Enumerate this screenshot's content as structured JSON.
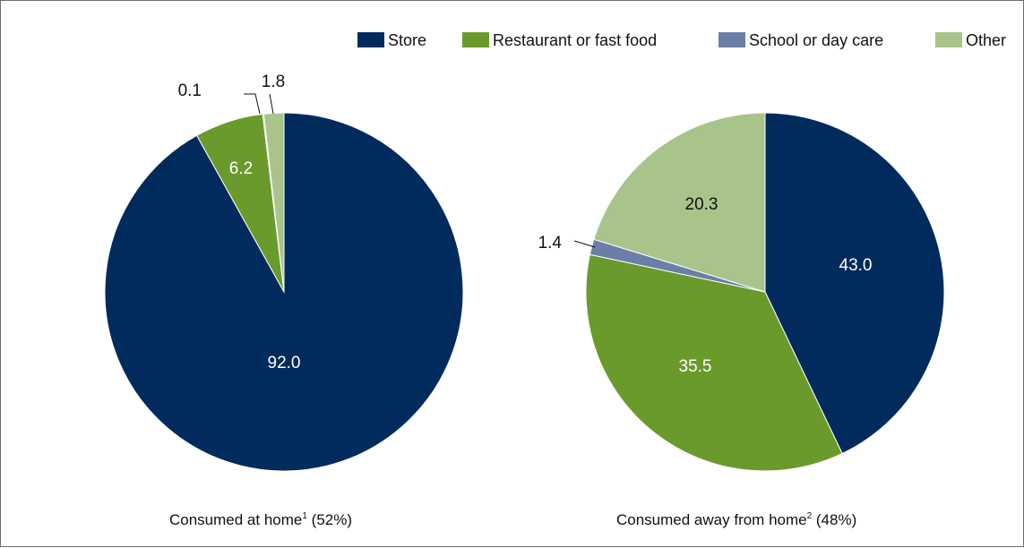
{
  "colors": {
    "store": "#002b5c",
    "restaurant": "#6a9a2c",
    "school": "#6b7fa6",
    "other": "#a9c48a"
  },
  "legend": [
    {
      "key": "store",
      "label": "Store"
    },
    {
      "key": "restaurant",
      "label": "Restaurant or fast food"
    },
    {
      "key": "school",
      "label": "School or day care"
    },
    {
      "key": "other",
      "label": "Other"
    }
  ],
  "chart_data": [
    {
      "type": "pie",
      "caption_main": "Consumed at home",
      "caption_sup": "1",
      "caption_tail": " (52%)",
      "slices": [
        {
          "key": "store",
          "label": "Store",
          "value": 92.0,
          "text": "92.0"
        },
        {
          "key": "restaurant",
          "label": "Restaurant or fast food",
          "value": 6.2,
          "text": "6.2"
        },
        {
          "key": "school",
          "label": "School or day care",
          "value": 0.1,
          "text": "0.1"
        },
        {
          "key": "other",
          "label": "Other",
          "value": 1.8,
          "text": "1.8"
        }
      ]
    },
    {
      "type": "pie",
      "caption_main": "Consumed away from home",
      "caption_sup": "2",
      "caption_tail": " (48%)",
      "slices": [
        {
          "key": "store",
          "label": "Store",
          "value": 43.0,
          "text": "43.0"
        },
        {
          "key": "restaurant",
          "label": "Restaurant or fast food",
          "value": 35.5,
          "text": "35.5"
        },
        {
          "key": "school",
          "label": "School or day care",
          "value": 1.4,
          "text": "1.4"
        },
        {
          "key": "other",
          "label": "Other",
          "value": 20.3,
          "text": "20.3"
        }
      ]
    }
  ]
}
